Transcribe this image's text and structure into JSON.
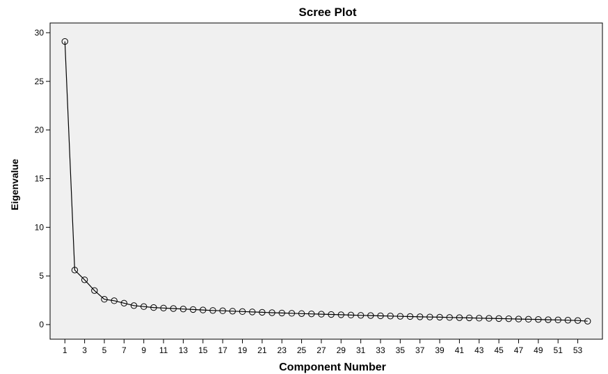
{
  "chart_data": {
    "type": "line",
    "title": "Scree Plot",
    "xlabel": "Component Number",
    "ylabel": "Eigenvalue",
    "ylim": [
      -1.5,
      31
    ],
    "yticks": [
      0,
      5,
      10,
      15,
      20,
      25,
      30
    ],
    "xlim": [
      -0.5,
      55.5
    ],
    "xticks": [
      1,
      3,
      5,
      7,
      9,
      11,
      13,
      15,
      17,
      19,
      21,
      23,
      25,
      27,
      29,
      31,
      33,
      35,
      37,
      39,
      41,
      43,
      45,
      47,
      49,
      51,
      53
    ],
    "grid": false,
    "legend": "none",
    "colors": {
      "plot_background": "#f0f0f0",
      "line": "#000000",
      "marker_stroke": "#000000"
    },
    "x": [
      1,
      2,
      3,
      4,
      5,
      6,
      7,
      8,
      9,
      10,
      11,
      12,
      13,
      14,
      15,
      16,
      17,
      18,
      19,
      20,
      21,
      22,
      23,
      24,
      25,
      26,
      27,
      28,
      29,
      30,
      31,
      32,
      33,
      34,
      35,
      36,
      37,
      38,
      39,
      40,
      41,
      42,
      43,
      44,
      45,
      46,
      47,
      48,
      49,
      50,
      51,
      52,
      53,
      54
    ],
    "series": [
      {
        "values": [
          29.1,
          5.6,
          4.6,
          3.5,
          2.6,
          2.45,
          2.2,
          1.95,
          1.85,
          1.75,
          1.7,
          1.65,
          1.6,
          1.55,
          1.5,
          1.45,
          1.42,
          1.38,
          1.34,
          1.3,
          1.26,
          1.22,
          1.19,
          1.16,
          1.13,
          1.1,
          1.07,
          1.04,
          1.01,
          0.98,
          0.95,
          0.93,
          0.9,
          0.88,
          0.85,
          0.83,
          0.8,
          0.78,
          0.76,
          0.73,
          0.71,
          0.69,
          0.66,
          0.64,
          0.62,
          0.6,
          0.57,
          0.55,
          0.53,
          0.5,
          0.48,
          0.45,
          0.42,
          0.35
        ]
      }
    ]
  }
}
